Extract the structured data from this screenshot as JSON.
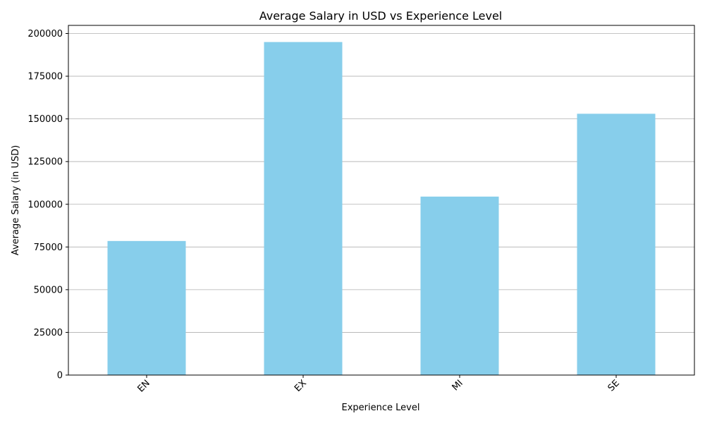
{
  "chart_data": {
    "type": "bar",
    "title": "Average Salary in USD vs Experience Level",
    "xlabel": "Experience Level",
    "ylabel": "Average Salary (in USD)",
    "categories": [
      "EN",
      "EX",
      "MI",
      "SE"
    ],
    "values": [
      78500,
      195000,
      104500,
      153000
    ],
    "ylim": [
      0,
      204750
    ],
    "yticks": [
      0,
      25000,
      50000,
      75000,
      100000,
      125000,
      150000,
      175000,
      200000
    ],
    "bar_color": "#87CEEB",
    "grid": "y-major",
    "x_tick_rotation_deg": 45
  }
}
